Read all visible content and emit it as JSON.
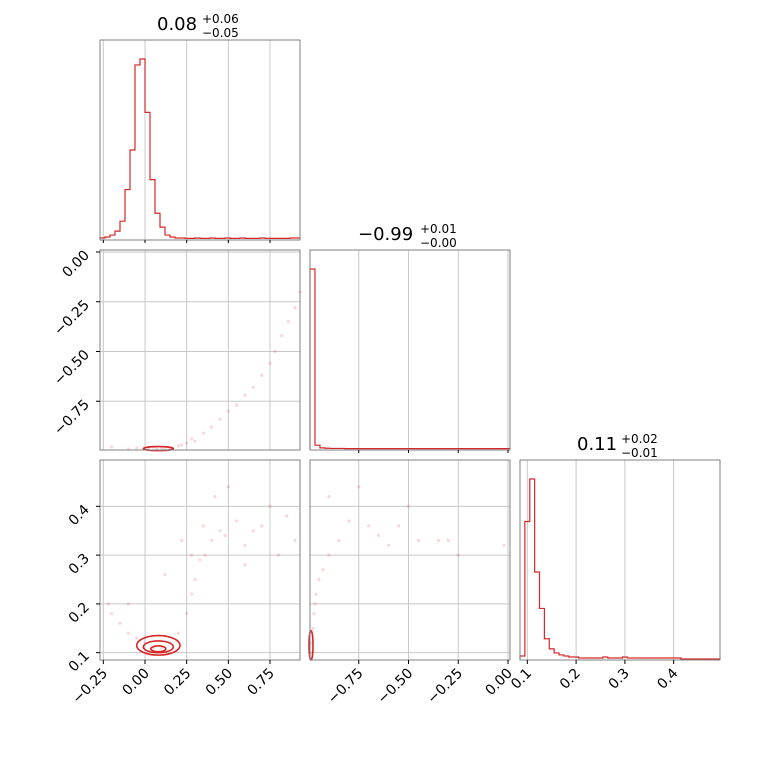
{
  "chart_data": {
    "type": "corner",
    "color": "#d62728",
    "titles": [
      {
        "value": "0.08",
        "plus": "+0.06",
        "minus": "−0.05"
      },
      {
        "value": "−0.99",
        "plus": "+0.01",
        "minus": "−0.00"
      },
      {
        "value": "0.11",
        "plus": "+0.02",
        "minus": "−0.01"
      }
    ],
    "params": [
      {
        "range": [
          -0.27,
          0.93
        ],
        "ticks": [
          "−0.25",
          "0.00",
          "0.25",
          "0.50",
          "0.75"
        ],
        "tick_values": [
          -0.25,
          0,
          0.25,
          0.5,
          0.75
        ]
      },
      {
        "range": [
          -0.995,
          0.01
        ],
        "ticks": [
          "0.00",
          "−0.25",
          "−0.50",
          "−0.75"
        ],
        "tick_values": [
          0,
          -0.25,
          -0.5,
          -0.75
        ],
        "xticks": [
          "−0.75",
          "−0.50",
          "−0.25",
          "0.00"
        ],
        "xtick_values": [
          -0.75,
          -0.5,
          -0.25,
          0
        ]
      },
      {
        "range": [
          0.085,
          0.495
        ],
        "ticks": [
          "0.1",
          "0.2",
          "0.3",
          "0.4"
        ],
        "tick_values": [
          0.1,
          0.2,
          0.3,
          0.4
        ]
      }
    ],
    "hist_p1": {
      "edges_start": -0.27,
      "bin_width": 0.03,
      "counts": [
        0.005,
        0.01,
        0.02,
        0.04,
        0.09,
        0.25,
        0.45,
        0.88,
        0.91,
        0.64,
        0.3,
        0.13,
        0.06,
        0.02,
        0.01,
        0.005,
        0.005,
        0.003,
        0.003,
        0.005,
        0.003,
        0.003,
        0.005,
        0.003,
        0.003,
        0.005,
        0.003,
        0.003,
        0.005,
        0.003,
        0.003,
        0.003,
        0.005,
        0.003,
        0.003,
        0.003,
        0.003,
        0.003,
        0.005,
        0.005
      ]
    },
    "hist_p2": {
      "edges_start": -0.995,
      "bin_width": 0.025,
      "counts": [
        0.95,
        0.02,
        0.006,
        0.004,
        0.003,
        0.003,
        0.003,
        0.002,
        0.002,
        0.002,
        0.002,
        0.002,
        0.002,
        0.002,
        0.002,
        0.002,
        0.002,
        0.002,
        0.002,
        0.002,
        0.002,
        0.002,
        0.002,
        0.002,
        0.002,
        0.002,
        0.002,
        0.002,
        0.002,
        0.002,
        0.002,
        0.002,
        0.002,
        0.002,
        0.002,
        0.002,
        0.002,
        0.002,
        0.002,
        0.002
      ]
    },
    "hist_p3": {
      "edges_start": 0.085,
      "bin_width": 0.01,
      "counts": [
        0.015,
        0.68,
        0.89,
        0.43,
        0.25,
        0.1,
        0.05,
        0.03,
        0.02,
        0.015,
        0.01,
        0.01,
        0.005,
        0.005,
        0.005,
        0.005,
        0.005,
        0.01,
        0.005,
        0.005,
        0.005,
        0.01,
        0.005,
        0.005,
        0.005,
        0.005,
        0.005,
        0.005,
        0.005,
        0.005,
        0.005,
        0.005,
        0.005,
        0,
        0,
        0,
        0,
        0,
        0,
        0,
        0
      ]
    },
    "scatter_12": [
      [
        -0.1,
        -0.99
      ],
      [
        -0.05,
        -0.985
      ],
      [
        0.02,
        -0.99
      ],
      [
        0.05,
        -0.98
      ],
      [
        0.1,
        -0.985
      ],
      [
        0.15,
        -0.99
      ],
      [
        0.2,
        -0.975
      ],
      [
        0.25,
        -0.96
      ],
      [
        0.28,
        -0.94
      ],
      [
        0.35,
        -0.91
      ],
      [
        0.4,
        -0.88
      ],
      [
        0.45,
        -0.84
      ],
      [
        0.5,
        -0.8
      ],
      [
        0.55,
        -0.77
      ],
      [
        0.6,
        -0.72
      ],
      [
        0.65,
        -0.68
      ],
      [
        0.7,
        -0.62
      ],
      [
        0.75,
        -0.56
      ],
      [
        0.78,
        -0.5
      ],
      [
        0.82,
        -0.42
      ],
      [
        0.86,
        -0.35
      ],
      [
        0.9,
        -0.28
      ],
      [
        0.93,
        -0.2
      ],
      [
        0.3,
        -0.95
      ],
      [
        0.22,
        -0.97
      ],
      [
        0.12,
        -0.99
      ],
      [
        0.07,
        -0.99
      ],
      [
        -0.2,
        -0.98
      ]
    ],
    "scatter_13": [
      [
        -0.22,
        0.2
      ],
      [
        -0.2,
        0.18
      ],
      [
        -0.15,
        0.16
      ],
      [
        -0.1,
        0.14
      ],
      [
        -0.05,
        0.13
      ],
      [
        0.0,
        0.12
      ],
      [
        0.05,
        0.11
      ],
      [
        0.1,
        0.11
      ],
      [
        0.15,
        0.12
      ],
      [
        0.2,
        0.14
      ],
      [
        0.25,
        0.18
      ],
      [
        0.28,
        0.22
      ],
      [
        0.3,
        0.25
      ],
      [
        0.33,
        0.29
      ],
      [
        0.36,
        0.3
      ],
      [
        0.4,
        0.33
      ],
      [
        0.45,
        0.35
      ],
      [
        0.48,
        0.34
      ],
      [
        0.5,
        0.44
      ],
      [
        0.55,
        0.37
      ],
      [
        0.6,
        0.32
      ],
      [
        0.7,
        0.36
      ],
      [
        0.75,
        0.4
      ],
      [
        0.8,
        0.3
      ],
      [
        0.85,
        0.38
      ],
      [
        0.9,
        0.33
      ],
      [
        0.6,
        0.28
      ],
      [
        0.42,
        0.42
      ],
      [
        0.35,
        0.36
      ],
      [
        0.22,
        0.33
      ],
      [
        -0.1,
        0.2
      ],
      [
        0.12,
        0.26
      ],
      [
        0.28,
        0.3
      ],
      [
        0.65,
        0.35
      ]
    ],
    "scatter_23": [
      [
        -0.99,
        0.1
      ],
      [
        -0.985,
        0.12
      ],
      [
        -0.98,
        0.15
      ],
      [
        -0.975,
        0.18
      ],
      [
        -0.97,
        0.2
      ],
      [
        -0.965,
        0.22
      ],
      [
        -0.95,
        0.25
      ],
      [
        -0.93,
        0.27
      ],
      [
        -0.9,
        0.3
      ],
      [
        -0.85,
        0.33
      ],
      [
        -0.8,
        0.37
      ],
      [
        -0.75,
        0.44
      ],
      [
        -0.7,
        0.36
      ],
      [
        -0.6,
        0.32
      ],
      [
        -0.55,
        0.36
      ],
      [
        -0.5,
        0.4
      ],
      [
        -0.45,
        0.33
      ],
      [
        -0.35,
        0.33
      ],
      [
        -0.3,
        0.33
      ],
      [
        -0.25,
        0.3
      ],
      [
        -0.02,
        0.32
      ],
      [
        -0.9,
        0.42
      ],
      [
        -0.65,
        0.34
      ]
    ],
    "contour_13": [
      {
        "cx": 0.08,
        "cy": 0.108,
        "rx": 0.045,
        "ry": 0.006
      },
      {
        "cx": 0.08,
        "cy": 0.112,
        "rx": 0.09,
        "ry": 0.012
      },
      {
        "cx": 0.08,
        "cy": 0.115,
        "rx": 0.13,
        "ry": 0.02
      }
    ],
    "contour_12": [
      {
        "cx": 0.08,
        "cy": -0.988,
        "rx": 0.09,
        "ry": 0.008
      }
    ],
    "contour_23": [
      {
        "cx": -0.99,
        "cy": 0.115,
        "rx": 0.006,
        "ry": 0.03
      }
    ]
  }
}
